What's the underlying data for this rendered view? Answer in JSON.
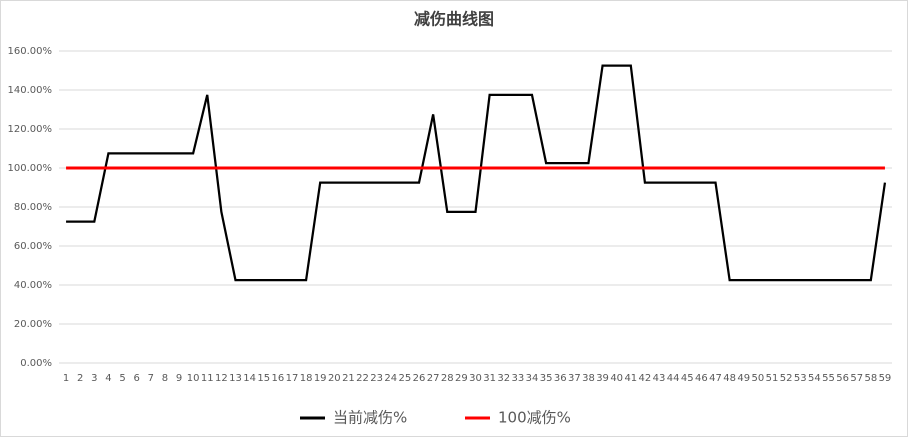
{
  "chart_data": {
    "type": "line",
    "title": "减伤曲线图",
    "categories": [
      "1",
      "2",
      "3",
      "4",
      "5",
      "6",
      "7",
      "8",
      "9",
      "10",
      "11",
      "12",
      "13",
      "14",
      "15",
      "16",
      "17",
      "18",
      "19",
      "20",
      "21",
      "22",
      "23",
      "24",
      "25",
      "26",
      "27",
      "28",
      "29",
      "30",
      "31",
      "32",
      "33",
      "34",
      "35",
      "36",
      "37",
      "38",
      "39",
      "40",
      "41",
      "42",
      "43",
      "44",
      "45",
      "46",
      "47",
      "48",
      "49",
      "50",
      "51",
      "52",
      "53",
      "54",
      "55",
      "56",
      "57",
      "58",
      "59"
    ],
    "series": [
      {
        "name": "当前减伤%",
        "color": "#000000",
        "values": [
          72.5,
          72.5,
          72.5,
          107.5,
          107.5,
          107.5,
          107.5,
          107.5,
          107.5,
          107.5,
          137.5,
          77.5,
          42.5,
          42.5,
          42.5,
          42.5,
          42.5,
          42.5,
          92.5,
          92.5,
          92.5,
          92.5,
          92.5,
          92.5,
          92.5,
          92.5,
          127.5,
          77.5,
          77.5,
          77.5,
          137.5,
          137.5,
          137.5,
          137.5,
          102.5,
          102.5,
          102.5,
          102.5,
          152.5,
          152.5,
          152.5,
          92.5,
          92.5,
          92.5,
          92.5,
          92.5,
          92.5,
          42.5,
          42.5,
          42.5,
          42.5,
          42.5,
          42.5,
          42.5,
          42.5,
          42.5,
          42.5,
          42.5,
          92.5
        ]
      },
      {
        "name": "100减伤%",
        "color": "#ff0000",
        "values": [
          100,
          100,
          100,
          100,
          100,
          100,
          100,
          100,
          100,
          100,
          100,
          100,
          100,
          100,
          100,
          100,
          100,
          100,
          100,
          100,
          100,
          100,
          100,
          100,
          100,
          100,
          100,
          100,
          100,
          100,
          100,
          100,
          100,
          100,
          100,
          100,
          100,
          100,
          100,
          100,
          100,
          100,
          100,
          100,
          100,
          100,
          100,
          100,
          100,
          100,
          100,
          100,
          100,
          100,
          100,
          100,
          100,
          100,
          100
        ]
      }
    ],
    "ylim": [
      0,
      160
    ],
    "yticks": [
      {
        "value": 0,
        "label": "0.00%"
      },
      {
        "value": 20,
        "label": "20.00%"
      },
      {
        "value": 40,
        "label": "40.00%"
      },
      {
        "value": 60,
        "label": "60.00%"
      },
      {
        "value": 80,
        "label": "80.00%"
      },
      {
        "value": 100,
        "label": "100.00%"
      },
      {
        "value": 120,
        "label": "120.00%"
      },
      {
        "value": 140,
        "label": "140.00%"
      },
      {
        "value": 160,
        "label": "160.00%"
      }
    ],
    "grid": true,
    "legend": "bottom"
  }
}
